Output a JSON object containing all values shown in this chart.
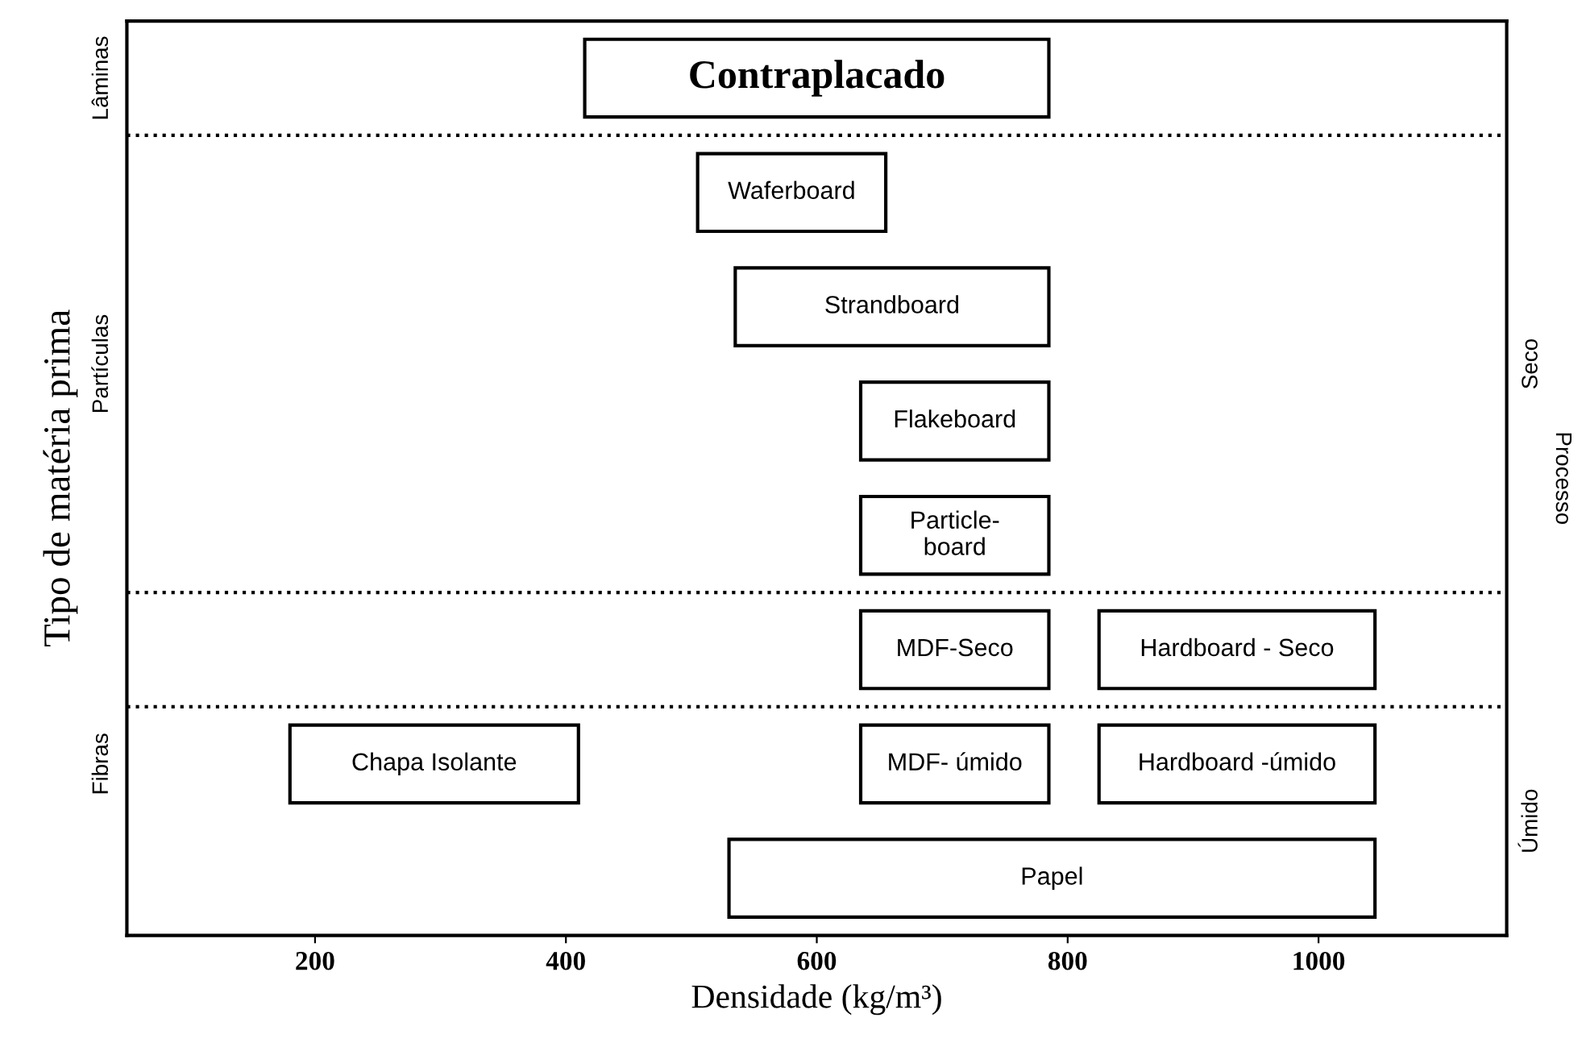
{
  "chart_data": {
    "type": "bar",
    "orientation": "horizontal",
    "xlabel": "Densidade (kg/m³)",
    "ylabel": "Tipo de matéria prima",
    "y2label": "Processo",
    "categories": [
      null,
      null,
      null,
      null,
      null,
      null,
      null,
      null
    ],
    "series": [
      {
        "color": "#ffffff",
        "base": [
          415,
          505,
          535,
          635,
          635,
          635,
          635,
          530
        ],
        "values": [
          370,
          150,
          250,
          150,
          150,
          150,
          150,
          515
        ],
        "value_labels": [
          "Contraplacado",
          "Waferboard",
          "Strandboard",
          "Flakeboard",
          "Particle-\nboard",
          "MDF-Seco",
          "MDF- úmido",
          "Papel"
        ]
      },
      {
        "color": "#ffffff",
        "base": [
          null,
          null,
          null,
          null,
          null,
          825,
          825,
          null
        ],
        "values": [
          null,
          null,
          null,
          null,
          null,
          220,
          220,
          null
        ],
        "value_labels": [
          null,
          null,
          null,
          null,
          null,
          "Hardboard - Seco",
          "Hardboard -úmido",
          null
        ]
      },
      {
        "color": "#ffffff",
        "base": [
          null,
          null,
          null,
          null,
          null,
          null,
          180,
          null
        ],
        "values": [
          null,
          null,
          null,
          null,
          null,
          null,
          230,
          null
        ],
        "value_labels": [
          null,
          null,
          null,
          null,
          null,
          null,
          "Chapa Isolante",
          null
        ]
      }
    ],
    "xlim": [
      50,
      1150
    ],
    "xticks": [
      200,
      400,
      600,
      800,
      1000
    ],
    "tick_labels": "x",
    "annotations": [
      "Lâminas",
      "Partículas",
      "Fibras",
      "Seco",
      "Úmido"
    ],
    "grid": false
  }
}
